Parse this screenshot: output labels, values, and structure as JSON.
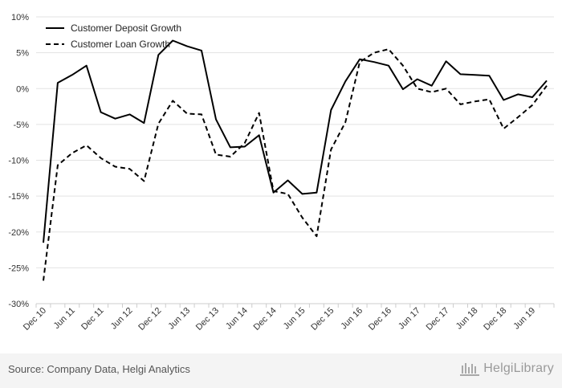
{
  "chart_data": {
    "type": "line",
    "title": "",
    "xlabel": "",
    "ylabel": "",
    "ylim": [
      -30,
      10
    ],
    "yticks": [
      10,
      5,
      0,
      -5,
      -10,
      -15,
      -20,
      -25,
      -30
    ],
    "ytick_labels": [
      "10%",
      "5%",
      "0%",
      "-5%",
      "-10%",
      "-15%",
      "-20%",
      "-25%",
      "-30%"
    ],
    "grid": "horizontal",
    "legend_position": "top-left",
    "x_labels": [
      "Dec 10",
      "Jun 11",
      "Dec 11",
      "Jun 12",
      "Dec 12",
      "Jun 13",
      "Dec 13",
      "Jun 14",
      "Dec 14",
      "Jun 15",
      "Dec 15",
      "Jun 16",
      "Dec 16",
      "Jun 17",
      "Dec 17",
      "Jun 18",
      "Dec 18",
      "Jun 19"
    ],
    "x": [
      "Dec 10",
      "Mar 11",
      "Jun 11",
      "Sep 11",
      "Dec 11",
      "Mar 12",
      "Jun 12",
      "Sep 12",
      "Dec 12",
      "Mar 13",
      "Jun 13",
      "Sep 13",
      "Dec 13",
      "Mar 14",
      "Jun 14",
      "Sep 14",
      "Dec 14",
      "Mar 15",
      "Jun 15",
      "Sep 15",
      "Dec 15",
      "Mar 16",
      "Jun 16",
      "Sep 16",
      "Dec 16",
      "Mar 17",
      "Jun 17",
      "Sep 17",
      "Dec 17",
      "Mar 18",
      "Jun 18",
      "Sep 18",
      "Dec 18",
      "Mar 19",
      "Jun 19",
      "Sep 19"
    ],
    "series": [
      {
        "name": "Customer Deposit Growth",
        "style": "solid",
        "color": "#000000",
        "values": [
          -21.5,
          0.8,
          1.9,
          3.2,
          -3.3,
          -4.2,
          -3.6,
          -4.8,
          4.7,
          6.7,
          5.9,
          5.3,
          -4.3,
          -8.2,
          -8.1,
          -6.5,
          -14.5,
          -12.8,
          -14.7,
          -14.5,
          -3.0,
          1.0,
          4.1,
          3.7,
          3.2,
          -0.1,
          1.3,
          0.4,
          3.8,
          2.0,
          1.9,
          1.8,
          -1.6,
          -0.8,
          -1.2,
          1.1
        ]
      },
      {
        "name": "Customer Loan Growth",
        "style": "dashed",
        "color": "#000000",
        "values": [
          -26.8,
          -10.7,
          -9.0,
          -7.9,
          -9.7,
          -10.9,
          -11.2,
          -12.9,
          -4.9,
          -1.7,
          -3.5,
          -3.6,
          -9.2,
          -9.5,
          -7.6,
          -3.4,
          -14.3,
          -14.7,
          -18.0,
          -20.6,
          -8.5,
          -4.7,
          3.7,
          5.0,
          5.5,
          3.2,
          0.0,
          -0.5,
          0.0,
          -2.2,
          -1.8,
          -1.5,
          -5.6,
          -4.0,
          -2.3,
          0.4
        ]
      }
    ]
  },
  "footer": {
    "source": "Source: Company Data, Helgi Analytics",
    "brand": "HelgiLibrary"
  }
}
